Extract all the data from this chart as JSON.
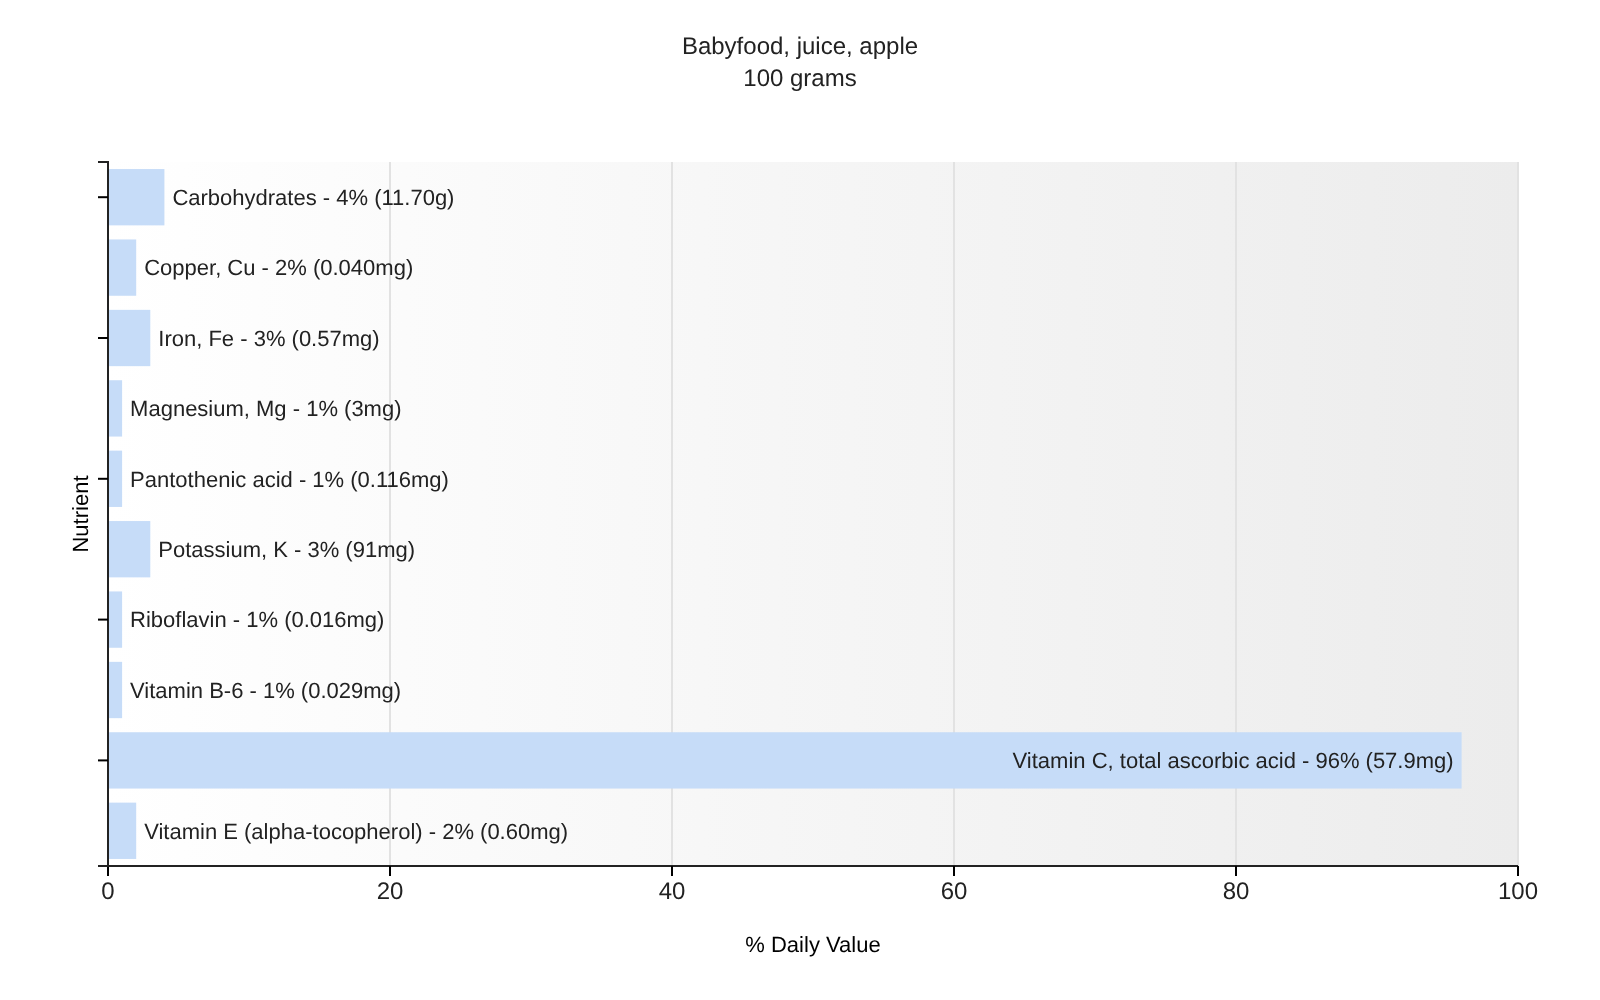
{
  "chart_data": {
    "type": "bar",
    "orientation": "horizontal",
    "title": "Babyfood, juice, apple",
    "subtitle": "100 grams",
    "xlabel": "% Daily Value",
    "ylabel": "Nutrient",
    "categories": [
      "Carbohydrates - 4% (11.70g)",
      "Copper, Cu - 2% (0.040mg)",
      "Iron, Fe - 3% (0.57mg)",
      "Magnesium, Mg - 1% (3mg)",
      "Pantothenic acid - 1% (0.116mg)",
      "Potassium, K - 3% (91mg)",
      "Riboflavin - 1% (0.016mg)",
      "Vitamin B-6 - 1% (0.029mg)",
      "Vitamin C, total ascorbic acid - 96% (57.9mg)",
      "Vitamin E (alpha-tocopherol) - 2% (0.60mg)"
    ],
    "values": [
      4,
      2,
      3,
      1,
      1,
      3,
      1,
      1,
      96,
      2
    ],
    "color": "#c6dcf8",
    "xlim": [
      0,
      100
    ],
    "xticks": [
      0,
      20,
      40,
      60,
      80,
      100
    ],
    "grid": "x"
  }
}
